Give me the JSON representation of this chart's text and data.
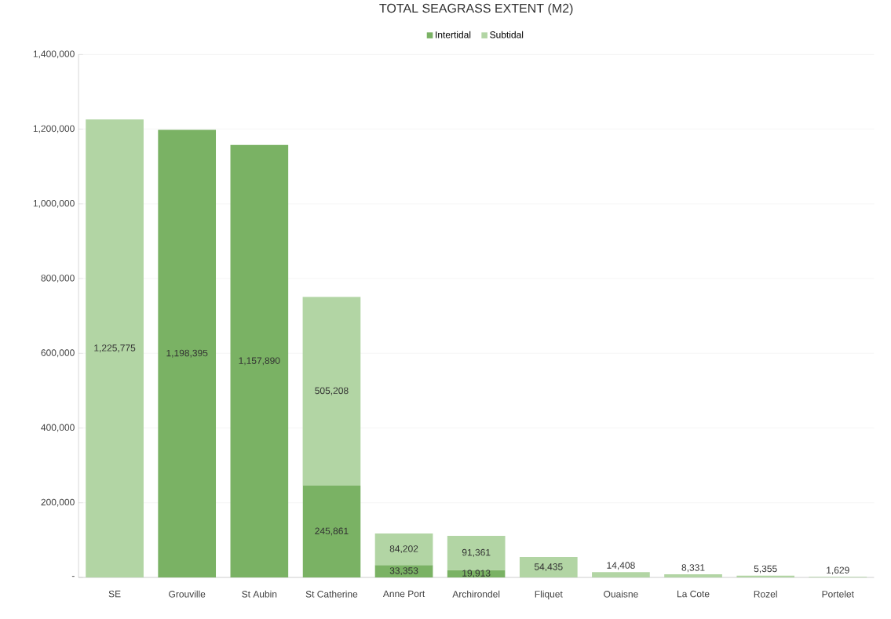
{
  "chart_data": {
    "type": "bar",
    "title": "TOTAL SEAGRASS EXTENT (M2)",
    "stacked": true,
    "categories": [
      "SE",
      "Grouville",
      "St Aubin",
      "St Catherine",
      "Anne Port",
      "Archirondel",
      "Fliquet",
      "Ouaisne",
      "La Cote",
      "Rozel",
      "Portelet"
    ],
    "series": [
      {
        "name": "Intertidal",
        "color": "#7ab264",
        "values": [
          null,
          1198395,
          1157890,
          245861,
          33353,
          19913,
          null,
          null,
          null,
          null,
          null
        ],
        "value_labels": [
          null,
          "1,198,395",
          "1,157,890",
          "245,861",
          "33,353",
          "19,913",
          null,
          null,
          null,
          null,
          null
        ]
      },
      {
        "name": "Subtidal",
        "color": "#b2d5a4",
        "values": [
          1225775,
          null,
          null,
          505208,
          84202,
          91361,
          54435,
          14408,
          8331,
          5355,
          1629
        ],
        "value_labels": [
          "1,225,775",
          null,
          null,
          "505,208",
          "84,202",
          "91,361",
          "54,435",
          "14,408",
          "8,331",
          "5,355",
          "1,629"
        ]
      }
    ],
    "ylim": [
      0,
      1400000
    ],
    "yticks": [
      {
        "value": 0,
        "label": "-"
      },
      {
        "value": 200000,
        "label": "200,000"
      },
      {
        "value": 400000,
        "label": "400,000"
      },
      {
        "value": 600000,
        "label": "600,000"
      },
      {
        "value": 800000,
        "label": "800,000"
      },
      {
        "value": 1000000,
        "label": "1,000,000"
      },
      {
        "value": 1200000,
        "label": "1,200,000"
      },
      {
        "value": 1400000,
        "label": "1,400,000"
      }
    ],
    "grid": "y",
    "legend": "top"
  }
}
